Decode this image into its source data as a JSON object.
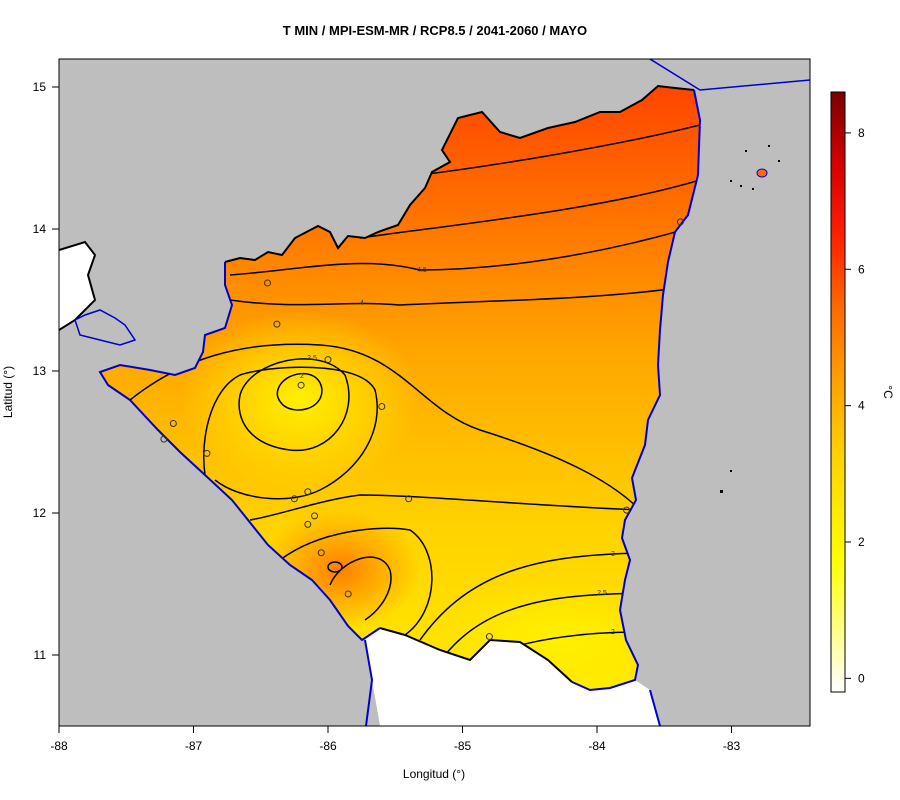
{
  "map": {
    "title": "T MIN / MPI-ESM-MR / RCP8.5 / 2041-2060 / MAYO",
    "xlabel": "Longitud (°)",
    "ylabel": "Latitud (°)",
    "x_ticks": [
      "-88",
      "-87",
      "-86",
      "-85",
      "-84",
      "-83"
    ],
    "y_ticks": [
      "11",
      "12",
      "13",
      "14",
      "15"
    ],
    "colorbar": {
      "label": "°C",
      "ticks": [
        "0",
        "2",
        "4",
        "6",
        "8"
      ],
      "range": [
        -0.2,
        8.6
      ],
      "colors": [
        "#ffffff",
        "#ffff00",
        "#ffd400",
        "#ffa000",
        "#ff6a00",
        "#ff2a00",
        "#e00000",
        "#8b0000"
      ]
    },
    "contour_labels": [
      "4.5",
      "4",
      "2.5",
      "2",
      "3",
      "2.5",
      "2"
    ],
    "stations": [
      {
        "lon": -86.45,
        "lat": 13.62
      },
      {
        "lon": -86.38,
        "lat": 13.33
      },
      {
        "lon": -86.0,
        "lat": 13.08
      },
      {
        "lon": -86.2,
        "lat": 12.9
      },
      {
        "lon": -85.6,
        "lat": 12.75
      },
      {
        "lon": -87.15,
        "lat": 12.63
      },
      {
        "lon": -87.22,
        "lat": 12.52
      },
      {
        "lon": -86.9,
        "lat": 12.42
      },
      {
        "lon": -86.25,
        "lat": 12.1
      },
      {
        "lon": -86.15,
        "lat": 12.15
      },
      {
        "lon": -85.4,
        "lat": 12.1
      },
      {
        "lon": -86.1,
        "lat": 11.98
      },
      {
        "lon": -86.15,
        "lat": 11.92
      },
      {
        "lon": -86.05,
        "lat": 11.72
      },
      {
        "lon": -85.85,
        "lat": 11.43
      },
      {
        "lon": -84.8,
        "lat": 11.13
      },
      {
        "lon": -83.78,
        "lat": 12.02
      },
      {
        "lon": -83.38,
        "lat": 14.05
      }
    ],
    "colors": {
      "sea_land_bg": "#bebebe",
      "coast": "#0000cd",
      "border": "#000000"
    }
  }
}
